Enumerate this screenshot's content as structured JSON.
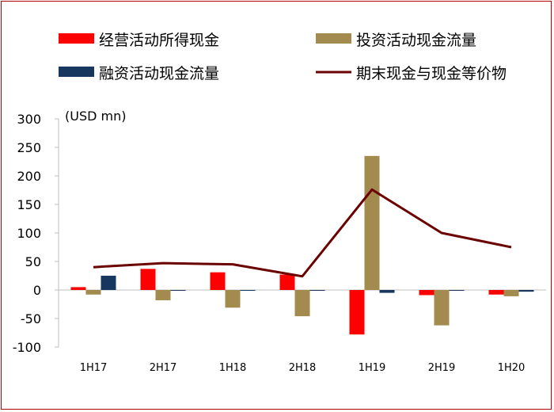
{
  "chart_data": {
    "type": "bar",
    "unit_label": "(USD mn)",
    "categories": [
      "1H17",
      "2H17",
      "1H18",
      "2H18",
      "1H19",
      "2H19",
      "1H20"
    ],
    "ylim": [
      -100,
      300
    ],
    "yticks": [
      300,
      250,
      200,
      150,
      100,
      50,
      0,
      -50,
      -100
    ],
    "ytick_labels": [
      "300",
      "250",
      "200",
      "150",
      "100",
      "50",
      "0",
      "-50",
      "-100"
    ],
    "legend_location": "top",
    "series": [
      {
        "name": "经营活动所得现金",
        "kind": "bar",
        "color": "#ff0000",
        "values": [
          5,
          37,
          31,
          27,
          -78,
          -9,
          -8
        ]
      },
      {
        "name": "投资活动现金流量",
        "kind": "bar",
        "color": "#a38a4e",
        "values": [
          -8,
          -18,
          -31,
          -46,
          235,
          -62,
          -11
        ]
      },
      {
        "name": "融资活动现金流量",
        "kind": "bar",
        "color": "#17375e",
        "values": [
          25,
          -1,
          -1,
          -1,
          -5,
          -1,
          -3
        ]
      },
      {
        "name": "期末现金与现金等价物",
        "kind": "line",
        "color": "#6b0000",
        "values": [
          40,
          47,
          45,
          24,
          176,
          100,
          75
        ]
      }
    ]
  }
}
